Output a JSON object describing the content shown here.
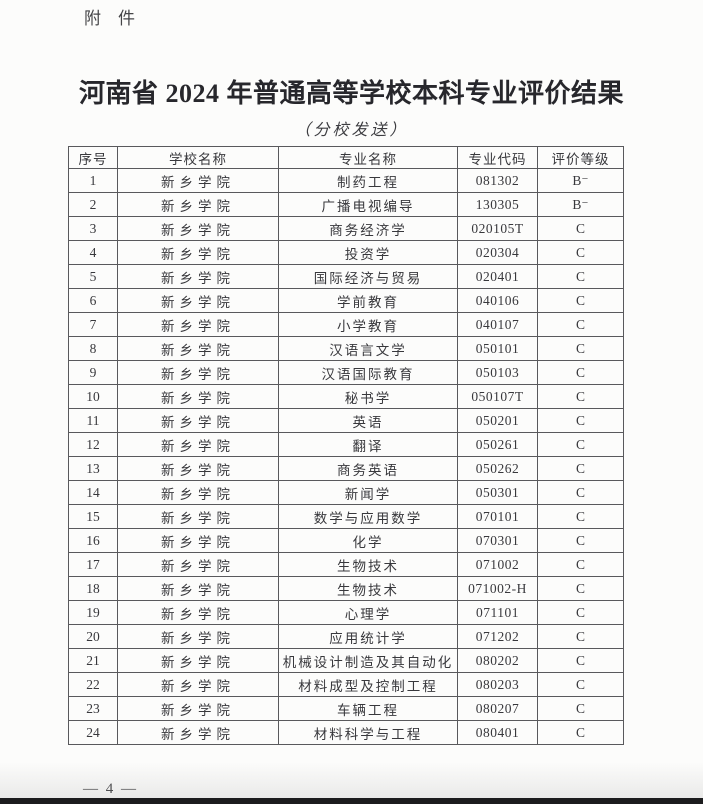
{
  "page": {
    "attachment_label": "附　件",
    "title": "河南省 2024 年普通高等学校本科专业评价结果",
    "subtitle": "（分校发送）",
    "page_number": "— 4 —"
  },
  "table": {
    "headers": [
      "序号",
      "学校名称",
      "专业名称",
      "专业代码",
      "评价等级"
    ],
    "rows": [
      [
        "1",
        "新乡学院",
        "制药工程",
        "081302",
        "B⁻"
      ],
      [
        "2",
        "新乡学院",
        "广播电视编导",
        "130305",
        "B⁻"
      ],
      [
        "3",
        "新乡学院",
        "商务经济学",
        "020105T",
        "C"
      ],
      [
        "4",
        "新乡学院",
        "投资学",
        "020304",
        "C"
      ],
      [
        "5",
        "新乡学院",
        "国际经济与贸易",
        "020401",
        "C"
      ],
      [
        "6",
        "新乡学院",
        "学前教育",
        "040106",
        "C"
      ],
      [
        "7",
        "新乡学院",
        "小学教育",
        "040107",
        "C"
      ],
      [
        "8",
        "新乡学院",
        "汉语言文学",
        "050101",
        "C"
      ],
      [
        "9",
        "新乡学院",
        "汉语国际教育",
        "050103",
        "C"
      ],
      [
        "10",
        "新乡学院",
        "秘书学",
        "050107T",
        "C"
      ],
      [
        "11",
        "新乡学院",
        "英语",
        "050201",
        "C"
      ],
      [
        "12",
        "新乡学院",
        "翻译",
        "050261",
        "C"
      ],
      [
        "13",
        "新乡学院",
        "商务英语",
        "050262",
        "C"
      ],
      [
        "14",
        "新乡学院",
        "新闻学",
        "050301",
        "C"
      ],
      [
        "15",
        "新乡学院",
        "数学与应用数学",
        "070101",
        "C"
      ],
      [
        "16",
        "新乡学院",
        "化学",
        "070301",
        "C"
      ],
      [
        "17",
        "新乡学院",
        "生物技术",
        "071002",
        "C"
      ],
      [
        "18",
        "新乡学院",
        "生物技术",
        "071002-H",
        "C"
      ],
      [
        "19",
        "新乡学院",
        "心理学",
        "071101",
        "C"
      ],
      [
        "20",
        "新乡学院",
        "应用统计学",
        "071202",
        "C"
      ],
      [
        "21",
        "新乡学院",
        "机械设计制造及其自动化",
        "080202",
        "C"
      ],
      [
        "22",
        "新乡学院",
        "材料成型及控制工程",
        "080203",
        "C"
      ],
      [
        "23",
        "新乡学院",
        "车辆工程",
        "080207",
        "C"
      ],
      [
        "24",
        "新乡学院",
        "材料科学与工程",
        "080401",
        "C"
      ]
    ]
  }
}
